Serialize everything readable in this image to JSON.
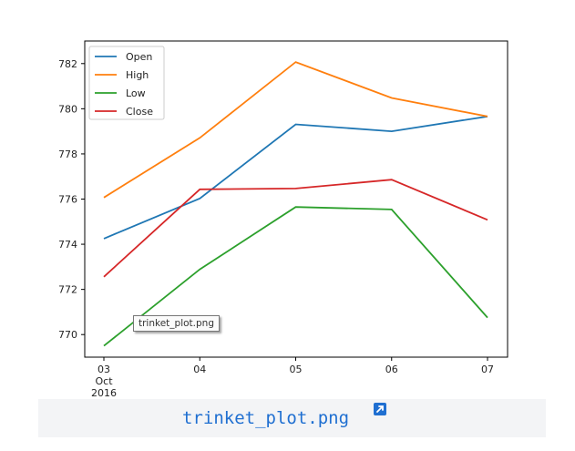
{
  "chart_data": {
    "type": "line",
    "x": [
      "03",
      "04",
      "05",
      "06",
      "07"
    ],
    "x_date_sublabel": [
      "Oct",
      "2016"
    ],
    "ylim": [
      769,
      783
    ],
    "yticks": [
      770,
      772,
      774,
      776,
      778,
      780,
      782
    ],
    "ytick_labels": [
      "770",
      "772",
      "774",
      "776",
      "778",
      "780",
      "782"
    ],
    "grid": false,
    "legend_position": "upper-left",
    "series": [
      {
        "name": "Open",
        "color": "#1f77b4",
        "values": [
          774.25,
          776.03,
          779.31,
          779.0,
          779.66
        ]
      },
      {
        "name": "High",
        "color": "#ff7f0e",
        "values": [
          776.07,
          778.71,
          782.07,
          780.48,
          779.66
        ]
      },
      {
        "name": "Low",
        "color": "#2ca02c",
        "values": [
          769.5,
          772.89,
          775.65,
          775.54,
          770.75
        ]
      },
      {
        "name": "Close",
        "color": "#d62728",
        "values": [
          772.56,
          776.43,
          776.47,
          776.86,
          775.08
        ]
      }
    ]
  },
  "tooltip": {
    "text": "trinket_plot.png"
  },
  "caption": {
    "link_text": "trinket_plot.png",
    "icon": "external-link-icon"
  }
}
